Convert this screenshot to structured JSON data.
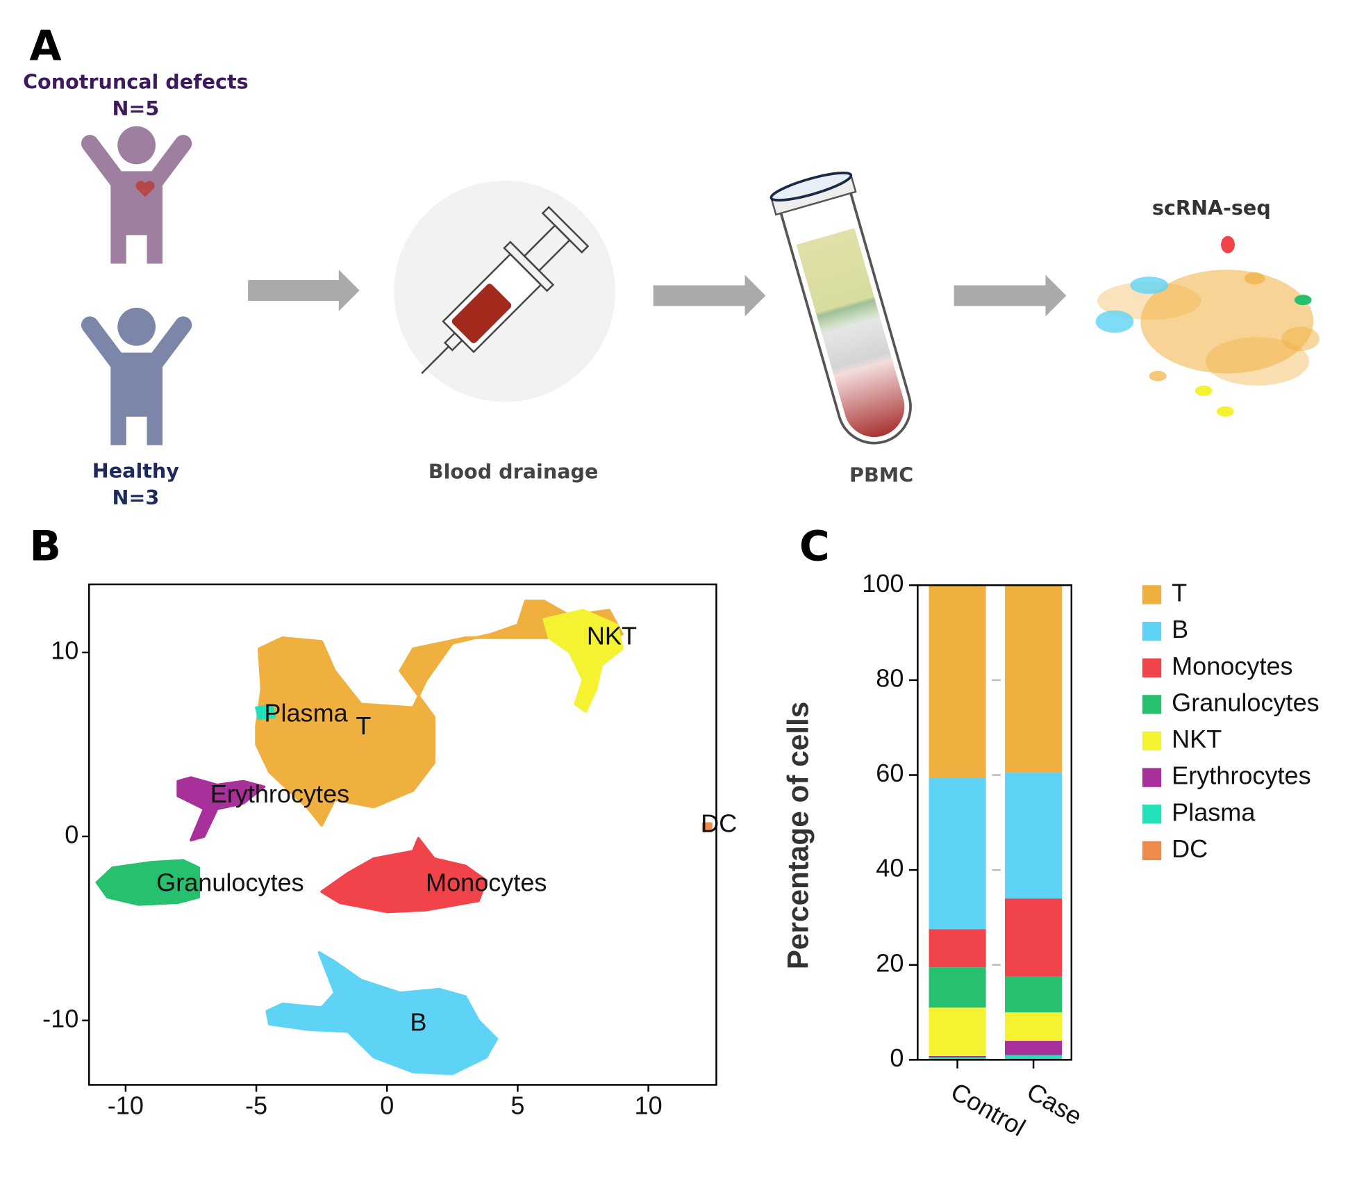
{
  "panel_labels": [
    "A",
    "B",
    "C"
  ],
  "workflow": {
    "case_group": "Conotruncal defects",
    "case_n": "N=5",
    "control_group": "Healthy",
    "control_n": "N=3",
    "step1": "Blood drainage",
    "step2": "PBMC",
    "step3": "scRNA-seq"
  },
  "chart_data": [
    {
      "type": "scatter",
      "xlim": [
        -11.4,
        12.6
      ],
      "ylim": [
        -13.5,
        13.7
      ],
      "xticks": [
        -10,
        -5,
        0,
        5,
        10
      ],
      "yticks": [
        -10,
        0,
        10
      ],
      "clusters": [
        {
          "name": "T",
          "color": "#f0b03f",
          "label_x": -0.9,
          "label_y": 5.9,
          "x": [
            -5,
            -4.8,
            -4.9,
            -4,
            -2.5,
            -2,
            -1,
            1,
            1.5,
            2.5,
            4,
            5,
            5.3,
            6,
            7,
            8.5,
            9,
            8,
            7,
            5.5,
            3,
            1,
            0.5,
            1.8,
            1.8,
            1,
            -0.5,
            -2,
            -2.5,
            -3,
            -4.5,
            -5
          ],
          "y": [
            6,
            8,
            10.2,
            10.8,
            10.6,
            9,
            7.2,
            7,
            8.5,
            10.5,
            11,
            11.5,
            12.8,
            12.8,
            12,
            12.3,
            11,
            10.5,
            10.8,
            10.8,
            10.8,
            10.2,
            9,
            6.5,
            4,
            2.5,
            1.6,
            2,
            0.6,
            1.5,
            3.5,
            5
          ]
        },
        {
          "name": "NKT",
          "color": "#f5f232",
          "label_x": 8.6,
          "label_y": 10.8,
          "x": [
            6,
            7.5,
            8.8,
            9,
            8.2,
            8,
            7.6,
            7.2,
            7.5,
            7,
            6.2
          ],
          "y": [
            11.8,
            12.3,
            11.5,
            10.2,
            9.3,
            8,
            6.8,
            7.2,
            8.5,
            10,
            10.8
          ]
        },
        {
          "name": "Erythrocytes",
          "color": "#a7309a",
          "label_x": -4.1,
          "label_y": 2.2,
          "x": [
            -8,
            -7.5,
            -6.5,
            -5.5,
            -4.7,
            -5.5,
            -6.5,
            -7,
            -7.5,
            -7,
            -8
          ],
          "y": [
            3,
            3.2,
            2.8,
            3,
            2.7,
            1.8,
            1.5,
            0,
            -0.2,
            1.5,
            2.2
          ]
        },
        {
          "name": "Plasma",
          "color": "#22e0b8",
          "label_x": -3.1,
          "label_y": 6.6,
          "x": [
            -5,
            -4.4,
            -4.3,
            -4.9
          ],
          "y": [
            7,
            7.1,
            6.5,
            6.4
          ]
        },
        {
          "name": "Granulocytes",
          "color": "#27c06f",
          "label_x": -6,
          "label_y": -2.6,
          "x": [
            -11.1,
            -10.5,
            -9,
            -7.8,
            -7.2,
            -7.2,
            -8,
            -9.5,
            -10.7
          ],
          "y": [
            -2.5,
            -1.7,
            -1.4,
            -1.3,
            -1.7,
            -3.3,
            -3.6,
            -3.7,
            -3.3
          ]
        },
        {
          "name": "Monocytes",
          "color": "#f0434a",
          "label_x": 3.8,
          "label_y": -2.6,
          "x": [
            -2.5,
            -1.5,
            -0.5,
            1,
            1.2,
            1.8,
            3,
            3.8,
            3.5,
            1.5,
            0,
            -1.8
          ],
          "y": [
            -3,
            -2,
            -1.2,
            -0.8,
            -0.1,
            -1.2,
            -1.6,
            -2.4,
            -3.5,
            -4,
            -4.1,
            -3.6
          ]
        },
        {
          "name": "B",
          "color": "#5fd3f5",
          "label_x": 1.2,
          "label_y": -10.2,
          "x": [
            -4.6,
            -4,
            -2.5,
            -2,
            -2.6,
            -2,
            -1,
            0.5,
            2,
            3,
            3.5,
            4.2,
            3.8,
            2.5,
            1,
            -0.5,
            -1.5,
            -3,
            -4.5
          ],
          "y": [
            -9.5,
            -9.1,
            -9.3,
            -8.5,
            -6.3,
            -6.8,
            -7.8,
            -8.5,
            -8.3,
            -8.7,
            -10,
            -11,
            -12,
            -12.9,
            -12.8,
            -12,
            -10.6,
            -10.5,
            -10.2
          ]
        },
        {
          "name": "DC",
          "color": "#f08a4b",
          "label_x": 12.7,
          "label_y": 0.6,
          "x": [
            12.1,
            12.4,
            12.4,
            12.1
          ],
          "y": [
            0.7,
            0.7,
            0.3,
            0.3
          ]
        }
      ]
    },
    {
      "type": "bar",
      "stacked": true,
      "ylabel": "Percentage of cells",
      "categories": [
        "Control",
        "Case"
      ],
      "ylim": [
        0,
        100
      ],
      "yticks": [
        0,
        20,
        40,
        60,
        80,
        100
      ],
      "legend": "right",
      "series": [
        {
          "name": "T",
          "color": "#f0b03f",
          "values": [
            40.5,
            39.5
          ]
        },
        {
          "name": "B",
          "color": "#5fd3f5",
          "values": [
            32,
            26.5
          ]
        },
        {
          "name": "Monocytes",
          "color": "#f0434a",
          "values": [
            8,
            16.5
          ]
        },
        {
          "name": "Granulocytes",
          "color": "#27c06f",
          "values": [
            8.5,
            7.5
          ]
        },
        {
          "name": "NKT",
          "color": "#f5f232",
          "values": [
            10.2,
            6
          ]
        },
        {
          "name": "Erythrocytes",
          "color": "#a7309a",
          "values": [
            0.3,
            3
          ]
        },
        {
          "name": "Plasma",
          "color": "#22e0b8",
          "values": [
            0.3,
            0.8
          ]
        },
        {
          "name": "DC",
          "color": "#f08a4b",
          "values": [
            0.2,
            0.2
          ]
        }
      ]
    }
  ]
}
